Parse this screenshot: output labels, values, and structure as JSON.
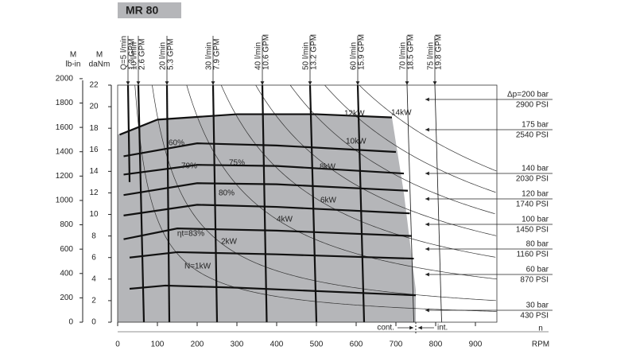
{
  "chart_data": {
    "type": "motor-map",
    "title": "MR 80",
    "y_title_lbin": [
      "M",
      "lb-in"
    ],
    "y_title_danm": [
      "M",
      "daNm"
    ],
    "x_title": [
      "n",
      "RPM"
    ],
    "cont_label": "cont.",
    "int_label": "int.",
    "xlim": [
      0,
      954
    ],
    "xticks": [
      0,
      100,
      200,
      300,
      400,
      500,
      600,
      700,
      800,
      900
    ],
    "ylim": [
      0,
      22
    ],
    "yticks": [
      0,
      2,
      4,
      6,
      8,
      10,
      12,
      14,
      16,
      18,
      20,
      22
    ],
    "y2lim": [
      0,
      1947
    ],
    "y2ticks": [
      0,
      200,
      400,
      600,
      800,
      1000,
      1200,
      1400,
      1600,
      1800,
      2000
    ],
    "region_color": "#b5b6b9",
    "operating_region": {
      "x": [
        0,
        100,
        300,
        500,
        690,
        720,
        750,
        750,
        0
      ],
      "y": [
        17.4,
        18.8,
        19.3,
        19.3,
        19.0,
        12,
        3,
        0,
        0
      ]
    },
    "pressure_lines": [
      {
        "name": "Δp=200 bar",
        "psi": "2900 PSI",
        "x": [
          5,
          100,
          300,
          500,
          690
        ],
        "y": [
          17.4,
          18.8,
          19.3,
          19.3,
          19.0
        ]
      },
      {
        "name": "175 bar",
        "psi": "2540 PSI",
        "x": [
          15,
          200,
          400,
          700
        ],
        "y": [
          15.4,
          16.6,
          16.4,
          15.8
        ]
      },
      {
        "name": "140 bar",
        "psi": "2030 PSI",
        "x": [
          15,
          200,
          400,
          720
        ],
        "y": [
          13.7,
          14.6,
          14.5,
          13.8
        ]
      },
      {
        "name": "120 bar",
        "psi": "1740 PSI",
        "x": [
          15,
          200,
          400,
          730
        ],
        "y": [
          11.8,
          12.9,
          12.8,
          12.2
        ]
      },
      {
        "name": "100 bar",
        "psi": "1450 PSI",
        "x": [
          15,
          200,
          400,
          735
        ],
        "y": [
          9.9,
          10.9,
          10.7,
          10.1
        ]
      },
      {
        "name": "80 bar",
        "psi": "1160 PSI",
        "x": [
          15,
          150,
          400,
          740
        ],
        "y": [
          7.7,
          8.7,
          8.5,
          8.0
        ]
      },
      {
        "name": "60 bar",
        "psi": "870 PSI",
        "x": [
          30,
          150,
          400,
          745
        ],
        "y": [
          6.0,
          6.5,
          6.3,
          5.9
        ]
      },
      {
        "name": "30 bar",
        "psi": "430 PSI",
        "x": [
          30,
          120,
          300,
          750
        ],
        "y": [
          3.1,
          3.4,
          3.2,
          2.5
        ]
      }
    ],
    "flow_lines": [
      {
        "name": "Q=5 l/min",
        "gpm": "1.3 GPM",
        "x": [
          26,
          30
        ],
        "y": [
          22,
          13
        ]
      },
      {
        "name": "10 l/min",
        "gpm": "2.6 GPM",
        "x": [
          52,
          66
        ],
        "y": [
          22,
          0
        ]
      },
      {
        "name": "20 l/min",
        "gpm": "5.3 GPM",
        "x": [
          124,
          130
        ],
        "y": [
          22,
          0
        ]
      },
      {
        "name": "30 l/min",
        "gpm": "7.9 GPM",
        "x": [
          240,
          250
        ],
        "y": [
          22,
          0
        ]
      },
      {
        "name": "40 l/min",
        "gpm": "10.6 GPM",
        "x": [
          364,
          375
        ],
        "y": [
          22,
          0
        ]
      },
      {
        "name": "50 l/min",
        "gpm": "13.2 GPM",
        "x": [
          484,
          500
        ],
        "y": [
          22,
          0
        ]
      },
      {
        "name": "60 l/min",
        "gpm": "15.9 GPM",
        "x": [
          604,
          620
        ],
        "y": [
          22,
          0
        ]
      },
      {
        "name": "70 l/min",
        "gpm": "18.5 GPM",
        "x": [
          728,
          745
        ],
        "y": [
          22,
          0
        ]
      },
      {
        "name": "75 l/min",
        "gpm": "19.8 GPM",
        "x": [
          798,
          815
        ],
        "y": [
          22,
          0
        ]
      }
    ],
    "power_curves": [
      {
        "label": "N=1kW",
        "kw": 1
      },
      {
        "label": "2kW",
        "kw": 2
      },
      {
        "label": "4kW",
        "kw": 4
      },
      {
        "label": "6kW",
        "kw": 6
      },
      {
        "label": "8kW",
        "kw": 8
      },
      {
        "label": "10kW",
        "kw": 10
      },
      {
        "label": "12kW",
        "kw": 12
      },
      {
        "label": "14kW",
        "kw": 14
      }
    ],
    "efficiency_labels": [
      "60%",
      "70%",
      "75%",
      "80%",
      "ηt=83%"
    ]
  }
}
